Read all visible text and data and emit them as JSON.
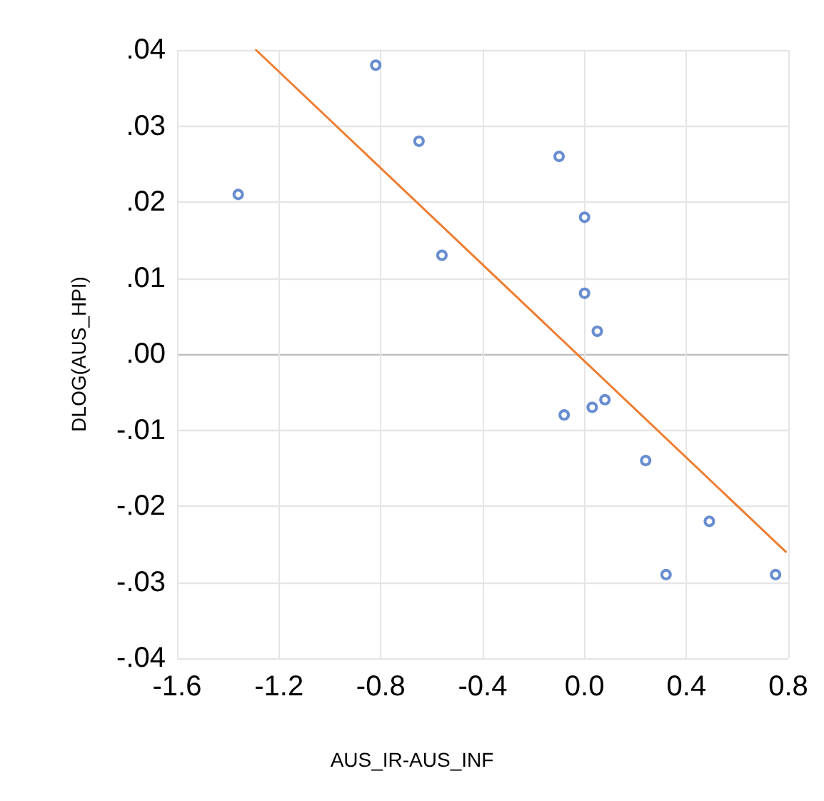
{
  "chart_data": {
    "type": "scatter",
    "xlabel": "AUS_IR-AUS_INF",
    "ylabel": "DLOG(AUS_HPI)",
    "xlim": [
      -1.6,
      0.8
    ],
    "xticks": [
      -1.6,
      -1.2,
      -0.8,
      -0.4,
      {
        "value": 0,
        "label": "0.0"
      },
      0.4,
      0.8
    ],
    "ylim": [
      -0.04,
      0.04
    ],
    "yticks": [
      {
        "value": -0.04,
        "label": "-.04"
      },
      {
        "value": -0.03,
        "label": "-.03"
      },
      {
        "value": -0.02,
        "label": "-.02"
      },
      {
        "value": -0.01,
        "label": "-.01"
      },
      {
        "value": 0,
        "label": ".00"
      },
      {
        "value": 0.01,
        "label": ".01"
      },
      {
        "value": 0.02,
        "label": ".02"
      },
      {
        "value": 0.03,
        "label": ".03"
      },
      {
        "value": 0.04,
        "label": ".04"
      }
    ],
    "grid": true,
    "marker": "circle",
    "series": [
      {
        "color": "#4472c4",
        "x": [
          -1.36,
          -0.82,
          -0.65,
          -0.56,
          -0.1,
          0.0,
          0.0,
          0.05,
          -0.08,
          0.03,
          0.08,
          0.24,
          0.49,
          0.32,
          0.75
        ],
        "values": [
          0.021,
          0.038,
          0.028,
          0.013,
          0.026,
          0.018,
          0.008,
          0.003,
          -0.008,
          -0.007,
          -0.006,
          -0.014,
          -0.022,
          -0.029,
          -0.029
        ]
      },
      {
        "type": "line",
        "color": "#ed7d31",
        "marker": "none",
        "x": [
          -1.29,
          0.79
        ],
        "values": [
          0.04,
          -0.026
        ]
      }
    ]
  }
}
